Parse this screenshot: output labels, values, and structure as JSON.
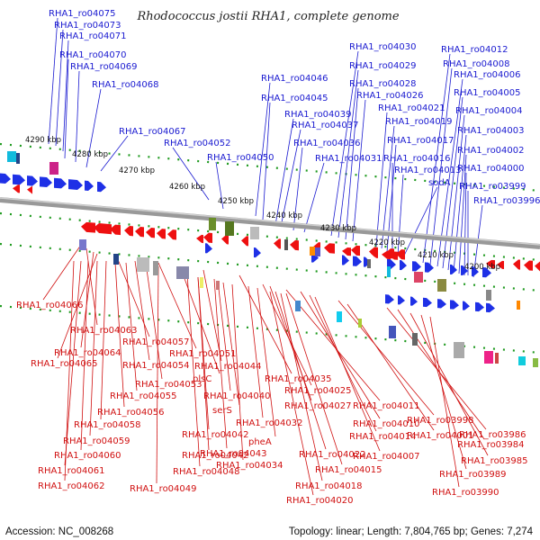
{
  "title": "Rhodococcus jostii RHA1, complete genome",
  "footer": {
    "accession": "Accession: NC_008268",
    "topology": "Topology: linear; Length: 7,804,765 bp; Genes: 7,274"
  },
  "kbp_labels": [
    "4290 kbp",
    "4280 kbp",
    "4270 kbp",
    "4260 kbp",
    "4250 kbp",
    "4240 kbp",
    "4230 kbp",
    "4220 kbp",
    "4210 kbp",
    "4200 kbp"
  ],
  "blue_labels": [
    "RHA1_ro04075",
    "RHA1_ro04073",
    "RHA1_ro04071",
    "RHA1_ro04070",
    "RHA1_ro04069",
    "RHA1_ro04068",
    "RHA1_ro04067",
    "RHA1_ro04052",
    "RHA1_ro04050",
    "RHA1_ro04046",
    "RHA1_ro04045",
    "RHA1_ro04039",
    "RHA1_ro04037",
    "RHA1_ro04036",
    "RHA1_ro04031",
    "RHA1_ro04030",
    "RHA1_ro04029",
    "RHA1_ro04028",
    "RHA1_ro04026",
    "RHA1_ro04021",
    "RHA1_ro04019",
    "RHA1_ro04017",
    "RHA1_ro04016",
    "RHA1_ro04013",
    "sodA",
    "RHA1_ro04012",
    "RHA1_ro04008",
    "RHA1_ro04006",
    "RHA1_ro04005",
    "RHA1_ro04004",
    "RHA1_ro04003",
    "RHA1_ro04002",
    "RHA1_ro04000",
    "RHA1_ro03999",
    "RHA1_ro03996"
  ],
  "red_labels": [
    "RHA1_ro04066",
    "RHA1_ro04063",
    "RHA1_ro04064",
    "RHA1_ro04057",
    "RHA1_ro04065",
    "RHA1_ro04051",
    "RHA1_ro04054",
    "plsC",
    "RHA1_ro04044",
    "RHA1_ro04053",
    "RHA1_ro04042",
    "RHA1_ro04035",
    "RHA1_ro04055",
    "RHA1_ro04040",
    "RHA1_ro04025",
    "RHA1_ro04056",
    "serS",
    "RHA1_ro04027",
    "RHA1_ro04011",
    "RHA1_ro04058",
    "RHA1_ro04032",
    "RHA1_ro04010",
    "RHA1_ro03998",
    "RHA1_ro04059",
    "RHA1_ro04042",
    "pheA",
    "RHA1_ro04014",
    "RHA1_ro04001",
    "RHA1_ro03986",
    "RHA1_ro04060",
    "RHA1_ro04043",
    "RHA1_ro04022",
    "RHA1_ro04007",
    "RHA1_ro03984",
    "RHA1_ro04061",
    "RHA1_ro04048",
    "RHA1_ro04034",
    "RHA1_ro04015",
    "RHA1_ro03985",
    "RHA1_ro04062",
    "RHA1_ro04049",
    "RHA1_ro04018",
    "RHA1_ro03989",
    "RHA1_ro04020",
    "RHA1_ro03990"
  ]
}
